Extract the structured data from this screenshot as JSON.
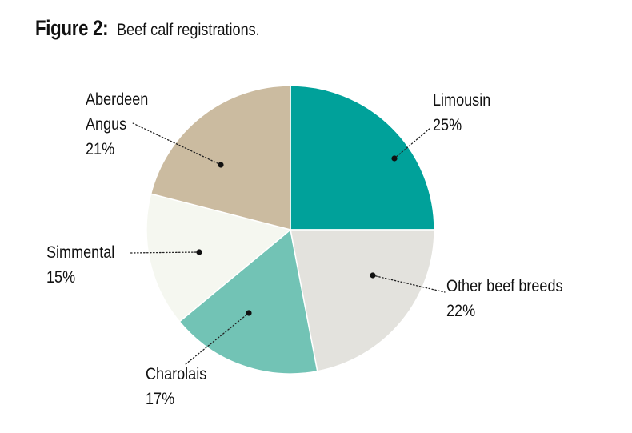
{
  "title": {
    "figure_label": "Figure 2:",
    "subtitle": "Beef calf registrations."
  },
  "colors": {
    "Limousin": "#00a19a",
    "Other beef breeds": "#e3e2dd",
    "Charolais": "#72c3b5",
    "Simmental": "#f5f7f0",
    "Aberdeen Angus": "#cbbba0",
    "border": "#ffffff",
    "text": "#111111"
  },
  "chart_data": {
    "type": "pie",
    "title": "Figure 2: Beef calf registrations.",
    "start": "12 o'clock",
    "direction": "clockwise",
    "slices": [
      {
        "label": "Limousin",
        "display": [
          "Limousin"
        ],
        "pct_label": "25%",
        "value": 25
      },
      {
        "label": "Other beef breeds",
        "display": [
          "Other beef breeds"
        ],
        "pct_label": "22%",
        "value": 22
      },
      {
        "label": "Charolais",
        "display": [
          "Charolais"
        ],
        "pct_label": "17%",
        "value": 17
      },
      {
        "label": "Simmental",
        "display": [
          "Simmental"
        ],
        "pct_label": "15%",
        "value": 15
      },
      {
        "label": "Aberdeen Angus",
        "display": [
          "Aberdeen",
          "Angus"
        ],
        "pct_label": "21%",
        "value": 21
      }
    ]
  }
}
